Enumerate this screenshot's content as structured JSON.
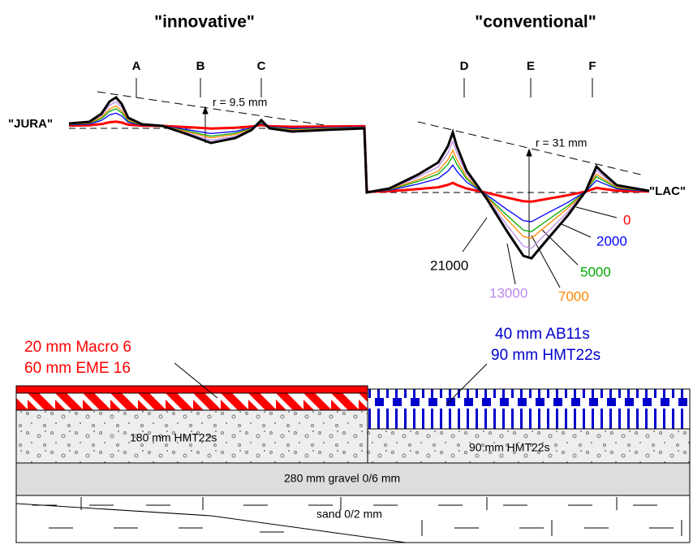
{
  "headings": {
    "innovative": "\"innovative\"",
    "conventional": "\"conventional\""
  },
  "sections": [
    "A",
    "B",
    "C",
    "D",
    "E",
    "F"
  ],
  "ends": {
    "left": "\"JURA\"",
    "right": "\"LAC\""
  },
  "radii": {
    "left": "r = 9.5 mm",
    "right": "r = 31 mm"
  },
  "load_cycles": [
    {
      "label": "0",
      "color": "#ff0000"
    },
    {
      "label": "2000",
      "color": "#0000ff"
    },
    {
      "label": "5000",
      "color": "#00aa00"
    },
    {
      "label": "7000",
      "color": "#ff8800"
    },
    {
      "label": "13000",
      "color": "#bb88ee"
    },
    {
      "label": "21000",
      "color": "#000000"
    }
  ],
  "layers": {
    "innovative_top": [
      "20 mm Macro 6",
      "60 mm EME 16"
    ],
    "conventional_top": [
      "40 mm AB11s",
      "90 mm HMT22s"
    ],
    "innovative_base": "180 mm HMT22s",
    "conventional_base": "90 mm HMT22s",
    "gravel": "280 mm gravel 0/6 mm",
    "sand": "sand 0/2 mm"
  }
}
